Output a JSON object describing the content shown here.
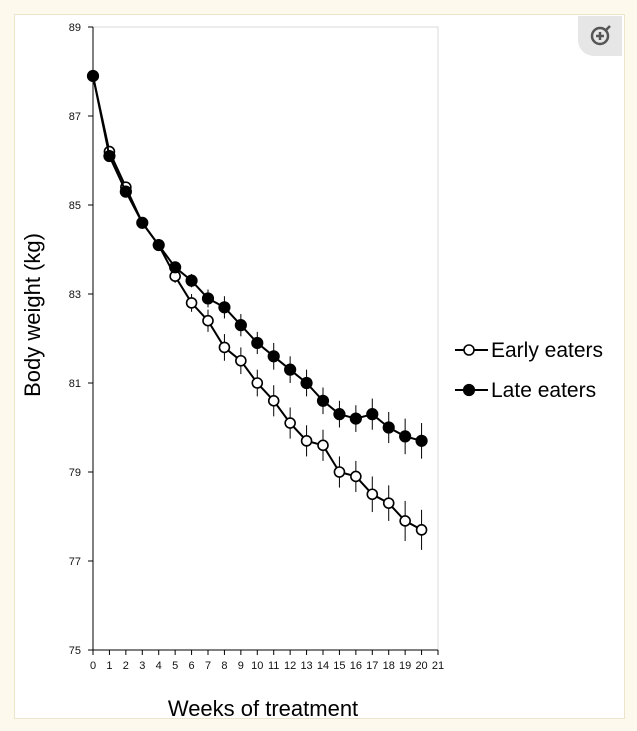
{
  "colors": {
    "page_bg": "#fdf9ec",
    "line": "#000000",
    "open_marker_fill": "#ffffff",
    "filled_marker": "#000000"
  },
  "zoom_icon": "zoom-in-icon",
  "chart_data": {
    "type": "line",
    "xlabel": "Weeks of treatment",
    "ylabel": "Body weight (kg)",
    "xlim": [
      0,
      21
    ],
    "ylim": [
      75,
      89
    ],
    "x_ticks": [
      "0",
      "1",
      "2",
      "3",
      "4",
      "5",
      "6",
      "7",
      "8",
      "9",
      "10",
      "11",
      "12",
      "13",
      "14",
      "15",
      "16",
      "17",
      "18",
      "19",
      "20",
      "21"
    ],
    "y_ticks": [
      "75",
      "77",
      "79",
      "81",
      "83",
      "85",
      "87",
      "89"
    ],
    "grid": false,
    "legend_position": "right",
    "series": [
      {
        "name": "Early eaters",
        "marker": "open-circle",
        "x": [
          0,
          1,
          2,
          3,
          4,
          5,
          6,
          7,
          8,
          9,
          10,
          11,
          12,
          13,
          14,
          15,
          16,
          17,
          18,
          19,
          20
        ],
        "y": [
          87.9,
          86.2,
          85.4,
          84.6,
          84.1,
          83.4,
          82.8,
          82.4,
          81.8,
          81.5,
          81.0,
          80.6,
          80.1,
          79.7,
          79.6,
          79.0,
          78.9,
          78.5,
          78.3,
          77.9,
          77.7
        ],
        "err": [
          0,
          0,
          0,
          0,
          0,
          0.15,
          0.2,
          0.25,
          0.3,
          0.3,
          0.3,
          0.35,
          0.35,
          0.35,
          0.35,
          0.35,
          0.35,
          0.4,
          0.4,
          0.45,
          0.45
        ]
      },
      {
        "name": "Late eaters",
        "marker": "filled-circle",
        "x": [
          0,
          1,
          2,
          3,
          4,
          5,
          6,
          7,
          8,
          9,
          10,
          11,
          12,
          13,
          14,
          15,
          16,
          17,
          18,
          19,
          20
        ],
        "y": [
          87.9,
          86.1,
          85.3,
          84.6,
          84.1,
          83.6,
          83.3,
          82.9,
          82.7,
          82.3,
          81.9,
          81.6,
          81.3,
          81.0,
          80.6,
          80.3,
          80.2,
          80.3,
          80.0,
          79.8,
          79.7
        ],
        "err": [
          0,
          0,
          0,
          0,
          0,
          0.1,
          0.15,
          0.2,
          0.25,
          0.25,
          0.25,
          0.3,
          0.3,
          0.3,
          0.3,
          0.3,
          0.3,
          0.35,
          0.35,
          0.4,
          0.4
        ]
      }
    ]
  }
}
